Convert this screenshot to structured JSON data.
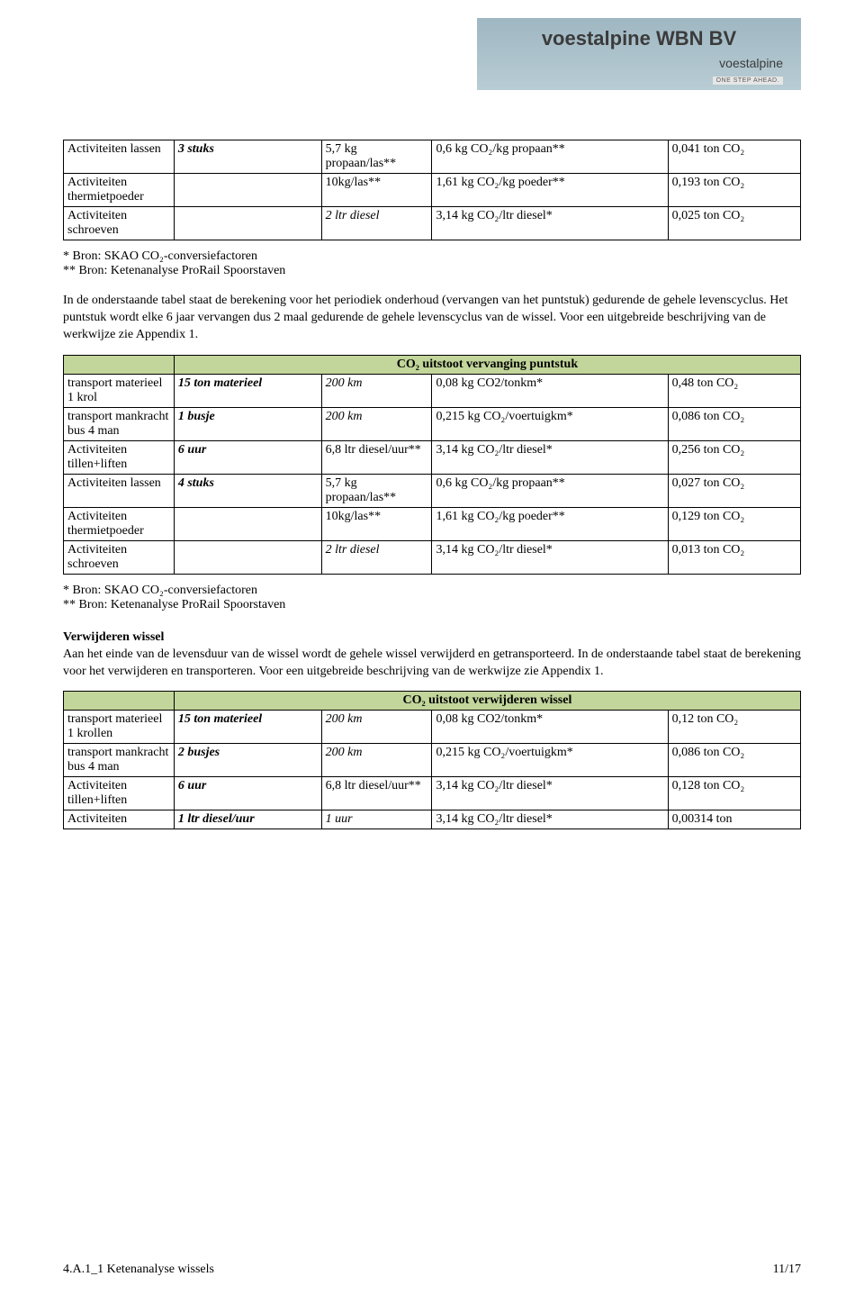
{
  "header": {
    "brand": "voestalpine WBN BV",
    "sub_logo": "voestalpine",
    "sub_tag": "ONE STEP AHEAD."
  },
  "table1": {
    "rows": [
      {
        "c0": "Activiteiten lassen",
        "c1_italic": "3 stuks",
        "c2": "5,7 kg propaan/las**",
        "c3": "0,6 kg CO₂/kg propaan**",
        "c4": "0,041 ton CO₂"
      },
      {
        "c0": "Activiteiten thermietpoeder",
        "c1": "",
        "c2": "10kg/las**",
        "c3": "1,61 kg CO₂/kg poeder**",
        "c4": "0,193 ton CO₂"
      },
      {
        "c0": "Activiteiten schroeven",
        "c1": "",
        "c2_italic": "2 ltr diesel",
        "c3": "3,14 kg CO₂/ltr diesel*",
        "c4": "0,025 ton CO₂"
      }
    ]
  },
  "footnote_a": "* Bron: SKAO CO₂-conversiefactoren",
  "footnote_b": "** Bron: Ketenanalyse ProRail Spoorstaven",
  "paragraph1": "In de onderstaande tabel staat de berekening voor het periodiek onderhoud (vervangen van het puntstuk) gedurende de gehele levenscyclus. Het puntstuk wordt elke 6 jaar vervangen dus 2 maal gedurende de gehele levenscyclus van de wissel. Voor een uitgebreide beschrijving van de werkwijze zie Appendix 1.",
  "table2": {
    "title": "CO₂ uitstoot vervanging puntstuk",
    "rows": [
      {
        "c0": "transport materieel 1 krol",
        "c1_italic": "15 ton materieel",
        "c2_italic": "200 km",
        "c3": "0,08 kg CO2/tonkm*",
        "c4": "0,48 ton CO₂"
      },
      {
        "c0": "transport mankracht bus 4 man",
        "c1_italic": "1 busje",
        "c2_italic": "200 km",
        "c3": "0,215 kg CO₂/voertuigkm*",
        "c4": "0,086 ton CO₂"
      },
      {
        "c0": "Activiteiten tillen+liften",
        "c1_italic": "6 uur",
        "c2": "6,8 ltr diesel/uur**",
        "c3": "3,14 kg CO₂/ltr diesel*",
        "c4": "0,256 ton CO₂"
      },
      {
        "c0": "Activiteiten lassen",
        "c1_italic": "4 stuks",
        "c2": "5,7 kg propaan/las**",
        "c3": "0,6 kg CO₂/kg propaan**",
        "c4": "0,027 ton CO₂"
      },
      {
        "c0": "Activiteiten thermietpoeder",
        "c1": "",
        "c2": "10kg/las**",
        "c3": "1,61 kg CO₂/kg poeder**",
        "c4": "0,129 ton CO₂"
      },
      {
        "c0": "Activiteiten schroeven",
        "c1": "",
        "c2_italic": "2 ltr diesel",
        "c3": "3,14 kg CO₂/ltr diesel*",
        "c4": "0,013 ton CO₂"
      }
    ]
  },
  "section3_heading": "Verwijderen wissel",
  "paragraph3": "Aan het einde van de levensduur van de wissel wordt de gehele wissel verwijderd en getransporteerd. In de onderstaande tabel staat de berekening voor het verwijderen en transporteren. Voor een uitgebreide beschrijving van de werkwijze zie Appendix 1.",
  "table3": {
    "title": "CO₂ uitstoot verwijderen wissel",
    "rows": [
      {
        "c0": "transport materieel 1 krollen",
        "c1_italic": "15 ton materieel",
        "c2_italic": "200 km",
        "c3": "0,08 kg CO2/tonkm*",
        "c4": "0,12 ton CO₂"
      },
      {
        "c0": "transport mankracht bus 4 man",
        "c1_italic": "2 busjes",
        "c2_italic": "200 km",
        "c3": "0,215 kg CO₂/voertuigkm*",
        "c4": "0,086 ton CO₂"
      },
      {
        "c0": "Activiteiten tillen+liften",
        "c1_italic": "6 uur",
        "c2": "6,8 ltr diesel/uur**",
        "c3": "3,14 kg CO₂/ltr diesel*",
        "c4": "0,128 ton CO₂"
      },
      {
        "c0": "Activiteiten",
        "c1_italic": "1 ltr diesel/uur",
        "c2_italic": "1 uur",
        "c3": "3,14 kg CO₂/ltr diesel*",
        "c4": "0,00314 ton"
      }
    ]
  },
  "footer": {
    "left": "4.A.1_1 Ketenanalyse wissels",
    "right": "11/17"
  }
}
